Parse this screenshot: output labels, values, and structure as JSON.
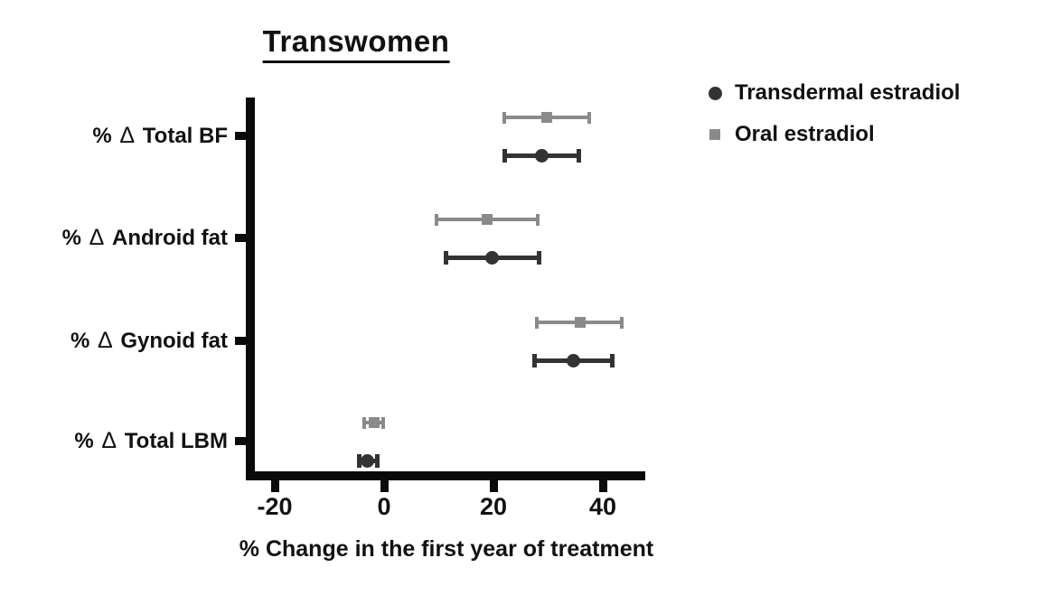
{
  "figure": {
    "title": "Transwomen",
    "x_axis_label": "% Change in the first year of treatment"
  },
  "legend": {
    "items": [
      {
        "label": "Transdermal estradiol",
        "marker": "circle",
        "color": "#333333"
      },
      {
        "label": "Oral estradiol",
        "marker": "square",
        "color": "#8a8a8a"
      }
    ]
  },
  "chart_data": {
    "type": "scatter",
    "subtype": "horizontal point estimates with error bars (forest-style plot)",
    "title": "Transwomen",
    "xlabel": "% Change in the first year of treatment",
    "categories": [
      "% Δ Total BF",
      "% Δ Android fat",
      "% Δ Gynoid fat",
      "% Δ Total LBM"
    ],
    "x_ticks": [
      -20,
      0,
      20,
      40
    ],
    "xlim": [
      -25,
      48
    ],
    "grid": false,
    "legend_position": "outside-top-right",
    "series": [
      {
        "name": "Oral estradiol",
        "marker": "square",
        "color": "#8a8a8a",
        "values": [
          29.8,
          18.8,
          35.9,
          -1.8
        ],
        "ci_low": [
          22.0,
          9.6,
          27.9,
          -3.6
        ],
        "ci_high": [
          37.5,
          28.1,
          43.5,
          -0.2
        ]
      },
      {
        "name": "Transdermal estradiol",
        "marker": "circle",
        "color": "#333333",
        "values": [
          28.8,
          19.8,
          34.7,
          -3.0
        ],
        "ci_low": [
          22.0,
          11.4,
          27.6,
          -4.6
        ],
        "ci_high": [
          35.7,
          28.4,
          41.7,
          -1.2
        ]
      }
    ]
  }
}
